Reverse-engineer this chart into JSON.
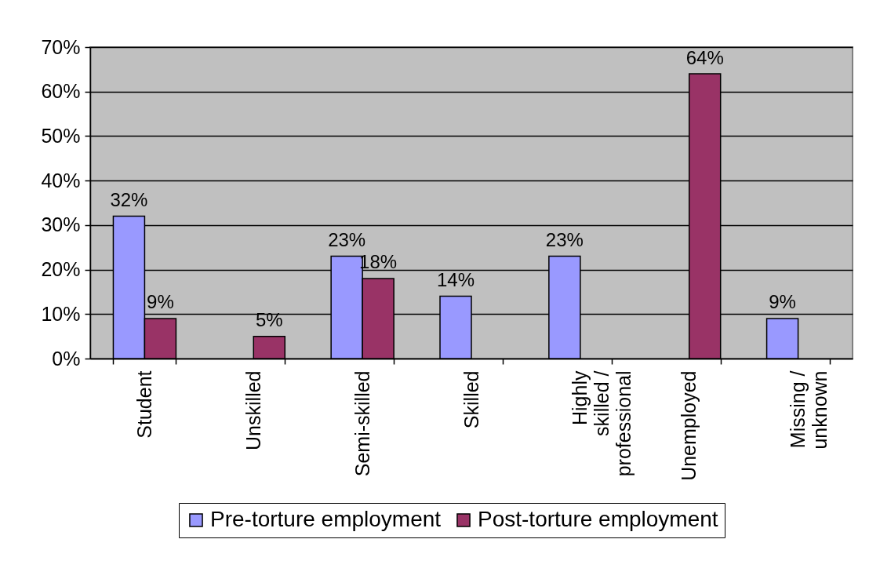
{
  "chart_data": {
    "type": "bar",
    "categories": [
      "Student",
      "Unskilled",
      "Semi-skilled",
      "Skilled",
      "Highly skilled / professional",
      "Unemployed",
      "Missing / unknown"
    ],
    "series": [
      {
        "name": "Pre-torture employment",
        "color": "#9999ff",
        "values": [
          32,
          null,
          23,
          14,
          23,
          null,
          9
        ],
        "value_labels": [
          "32%",
          null,
          "23%",
          "14%",
          "23%",
          null,
          "9%"
        ]
      },
      {
        "name": "Post-torture employment",
        "color": "#993366",
        "values": [
          9,
          5,
          18,
          null,
          null,
          64,
          null
        ],
        "value_labels": [
          "9%",
          "5%",
          "18%",
          null,
          null,
          "64%",
          null
        ]
      }
    ],
    "ylim": [
      0,
      70
    ],
    "yticks": [
      {
        "value": 0,
        "label": "0%"
      },
      {
        "value": 10,
        "label": "10%"
      },
      {
        "value": 20,
        "label": "20%"
      },
      {
        "value": 30,
        "label": "30%"
      },
      {
        "value": 40,
        "label": "40%"
      },
      {
        "value": 50,
        "label": "50%"
      },
      {
        "value": 60,
        "label": "60%"
      },
      {
        "value": 70,
        "label": "70%"
      }
    ],
    "grid": "y",
    "legend": "bottom"
  }
}
